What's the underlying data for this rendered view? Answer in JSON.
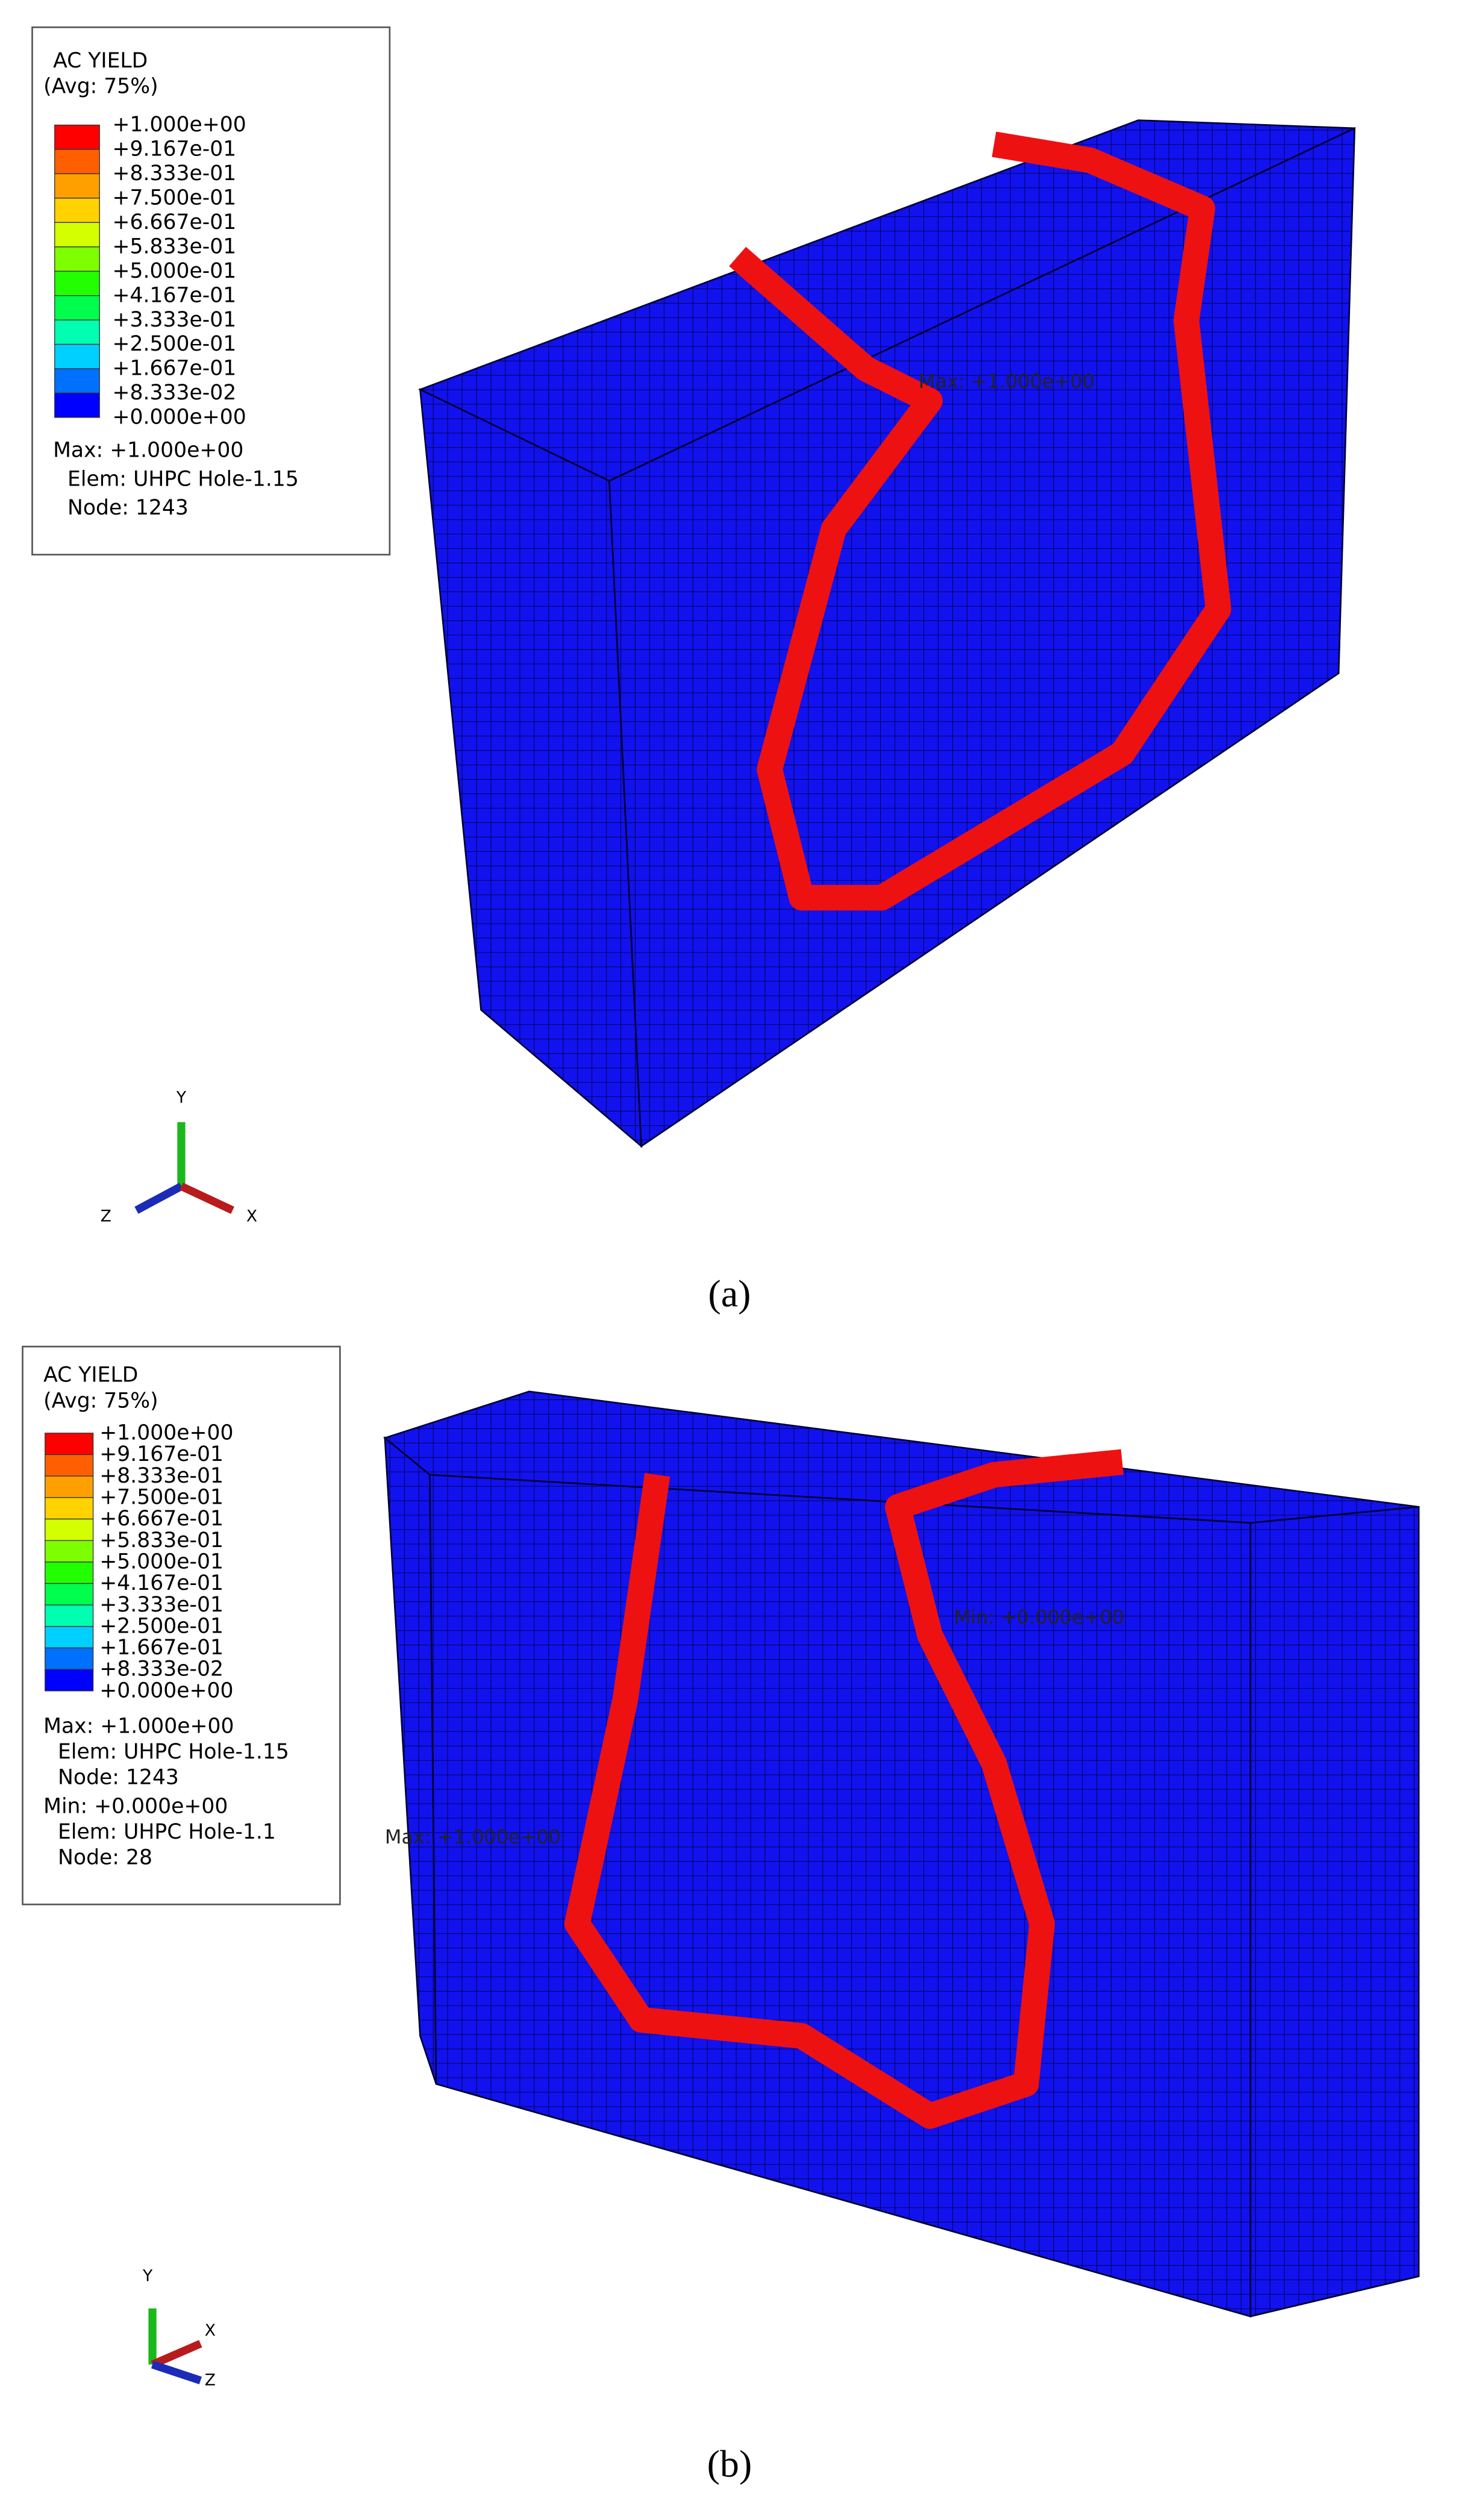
{
  "panels": [
    {
      "caption": "(a)",
      "legend": {
        "title": "AC YIELD",
        "subtitle": "(Avg: 75%)",
        "levels": [
          "+1.000e+00",
          "+9.167e-01",
          "+8.333e-01",
          "+7.500e-01",
          "+6.667e-01",
          "+5.833e-01",
          "+5.000e-01",
          "+4.167e-01",
          "+3.333e-01",
          "+2.500e-01",
          "+1.667e-01",
          "+8.333e-02",
          "+0.000e+00"
        ],
        "colors": [
          "#ff0000",
          "#ff5f00",
          "#ffa000",
          "#ffd200",
          "#d4ff00",
          "#7dff00",
          "#22ff00",
          "#00ff4c",
          "#00ffb0",
          "#00d0ff",
          "#0070ff",
          "#0000ff"
        ]
      },
      "info": [
        [
          "Max: +1.000e+00",
          "Elem: UHPC Hole-1.15",
          "Node: 1243"
        ]
      ],
      "annotations": [
        "Max: +1.000e+00"
      ],
      "axes": [
        "Y",
        "Z",
        "X"
      ]
    },
    {
      "caption": "(b)",
      "legend": {
        "title": "AC YIELD",
        "subtitle": "(Avg: 75%)",
        "levels": [
          "+1.000e+00",
          "+9.167e-01",
          "+8.333e-01",
          "+7.500e-01",
          "+6.667e-01",
          "+5.833e-01",
          "+5.000e-01",
          "+4.167e-01",
          "+3.333e-01",
          "+2.500e-01",
          "+1.667e-01",
          "+8.333e-02",
          "+0.000e+00"
        ],
        "colors": [
          "#ff0000",
          "#ff5f00",
          "#ffa000",
          "#ffd200",
          "#d4ff00",
          "#7dff00",
          "#22ff00",
          "#00ff4c",
          "#00ffb0",
          "#00d0ff",
          "#0070ff",
          "#0000ff"
        ]
      },
      "info": [
        [
          "Max: +1.000e+00",
          "Elem: UHPC Hole-1.15",
          "Node: 1243"
        ],
        [
          "Min: +0.000e+00",
          "Elem: UHPC Hole-1.1",
          "Node: 28"
        ]
      ],
      "annotations": [
        "Min: +0.000e+00",
        "Max: +1.000e+00"
      ],
      "axes": [
        "Y",
        "X",
        "Z"
      ]
    }
  ]
}
